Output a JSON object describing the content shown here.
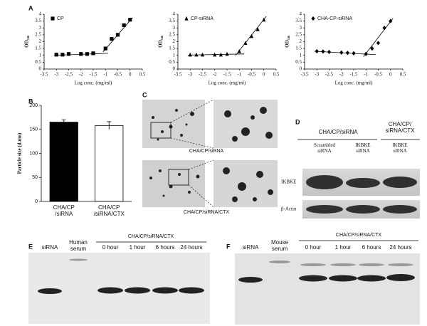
{
  "panel_labels": [
    "A",
    "B",
    "C",
    "D",
    "E",
    "F"
  ],
  "chart_data": [
    {
      "type": "scatter",
      "xlabel": "Log conc. (mg/ml)",
      "ylabel": "OD₅₄₆",
      "legend": "upper left",
      "xlim": [
        -3.5,
        0.5
      ],
      "xticks": [
        -3.5,
        -3,
        -2.5,
        -2,
        -1.5,
        -1,
        -0.5,
        0,
        0.5
      ],
      "ylim": [
        0,
        4
      ],
      "yticks": [
        0,
        0.5,
        1,
        1.5,
        2,
        2.5,
        3,
        3.5,
        4
      ],
      "series": [
        {
          "name": "CP",
          "marker": "square",
          "color": "#000000",
          "x": [
            -3,
            -2.75,
            -2.5,
            -2,
            -1.75,
            -1.5,
            -1,
            -0.75,
            -0.5,
            -0.25,
            0
          ],
          "values": [
            1.05,
            1.05,
            1.1,
            1.1,
            1.1,
            1.15,
            1.5,
            2.2,
            2.5,
            3.2,
            3.6
          ]
        }
      ],
      "fit_lines": [
        {
          "x": [
            -3.1,
            -0.9
          ],
          "values": [
            1.0,
            1.15
          ]
        },
        {
          "x": [
            -1.1,
            0.1
          ],
          "values": [
            1.25,
            3.75
          ]
        }
      ]
    },
    {
      "type": "scatter",
      "xlabel": "Log conc. (mg/ml)",
      "ylabel": "OD₅₄₆",
      "legend": "upper left",
      "xlim": [
        -3.5,
        0.5
      ],
      "xticks": [
        -3.5,
        -3,
        -2.5,
        -2,
        -1.5,
        -1,
        -0.5,
        0,
        0.5
      ],
      "ylim": [
        0,
        4
      ],
      "yticks": [
        0,
        0.5,
        1,
        1.5,
        2,
        2.5,
        3,
        3.5,
        4
      ],
      "series": [
        {
          "name": "CP-siRNA",
          "marker": "triangle",
          "color": "#000000",
          "x": [
            -3,
            -2.75,
            -2.5,
            -2,
            -1.75,
            -1.5,
            -1,
            -0.75,
            -0.5,
            -0.25,
            0
          ],
          "values": [
            1.05,
            1.05,
            1.05,
            1.05,
            1.05,
            1.1,
            1.3,
            1.9,
            2.4,
            2.9,
            3.6
          ]
        }
      ],
      "fit_lines": [
        {
          "x": [
            -3.1,
            -0.8
          ],
          "values": [
            1.02,
            1.1
          ]
        },
        {
          "x": [
            -1.15,
            0.1
          ],
          "values": [
            1.0,
            3.85
          ]
        }
      ]
    },
    {
      "type": "scatter",
      "xlabel": "Log conc. (mg/ml)",
      "ylabel": "OD₅₄₆",
      "legend": "upper left",
      "xlim": [
        -3.5,
        0.5
      ],
      "xticks": [
        -3.5,
        -3,
        -2.5,
        -2,
        -1.5,
        -1,
        -0.5,
        0,
        0.5
      ],
      "ylim": [
        0,
        4
      ],
      "yticks": [
        0,
        0.5,
        1,
        1.5,
        2,
        2.5,
        3,
        3.5,
        4
      ],
      "series": [
        {
          "name": "CHA-CP-siRNA",
          "marker": "diamond",
          "color": "#000000",
          "x": [
            -3,
            -2.75,
            -2.5,
            -2,
            -1.75,
            -1.5,
            -1,
            -0.75,
            -0.5,
            -0.25,
            0
          ],
          "values": [
            1.3,
            1.28,
            1.25,
            1.2,
            1.18,
            1.15,
            1.1,
            1.5,
            1.9,
            3.0,
            3.5
          ]
        }
      ],
      "fit_lines": [
        {
          "x": [
            -3.1,
            -0.6
          ],
          "values": [
            1.3,
            1.05
          ]
        },
        {
          "x": [
            -1.1,
            0.1
          ],
          "values": [
            0.9,
            3.7
          ]
        }
      ]
    },
    {
      "type": "bar",
      "ylabel": "Particle size (d.nm)",
      "categories": [
        "CHA/CP\n/siRNA",
        "CHA/CP\n/siRNA/CTX"
      ],
      "values": [
        165,
        158
      ],
      "errors": [
        5,
        8
      ],
      "colors": [
        "#000000",
        "#ffffff"
      ],
      "ylim": [
        0,
        200
      ],
      "yticks": [
        0,
        50,
        100,
        150,
        200
      ]
    }
  ],
  "micrographs": {
    "labels": [
      "CHA/CP/siRNA",
      "CHA/CP/siRNA/CTX"
    ]
  },
  "western_blot": {
    "groups": [
      "CHA/CP/siRNA",
      "CHA/CP/\nsiRNA/CTX"
    ],
    "lanes": [
      "Scrambled\nsiRNA",
      "IKBKE\nsiRNA",
      "IKBKE\nsiRNA"
    ],
    "rows": [
      "IKBKE",
      "β-Actin"
    ]
  },
  "gels": [
    {
      "group": "CHA/CP/siRNA/CTX",
      "lanes": [
        "siRNA",
        "Human\nserum",
        "0 hour",
        "1 hour",
        "6 hours",
        "24 hours"
      ]
    },
    {
      "group": "CHA/CP/siRNA/CTX",
      "lanes": [
        "siRNA",
        "Mouse\nserum",
        "0 hour",
        "1 hour",
        "6 hours",
        "24 hours"
      ]
    }
  ]
}
